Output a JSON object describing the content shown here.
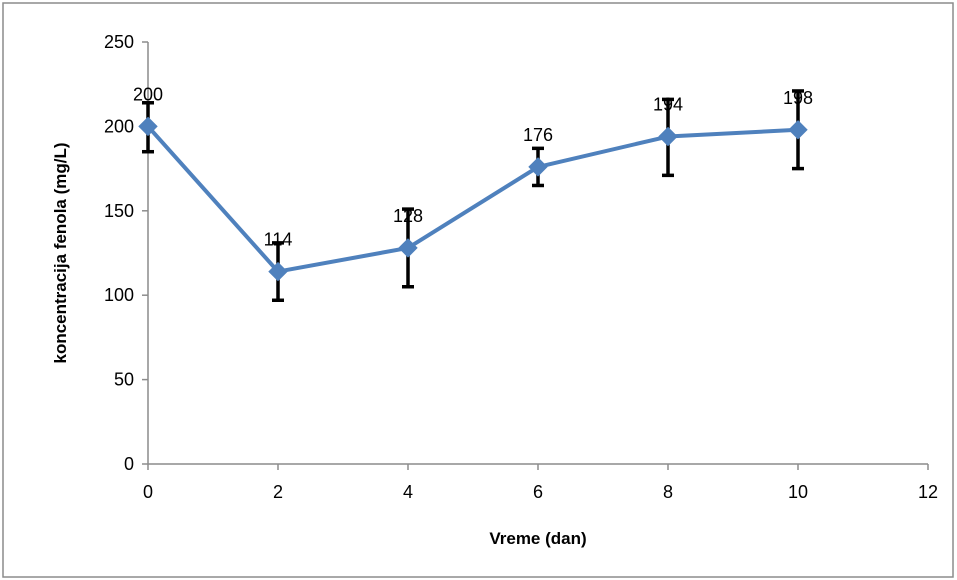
{
  "chart_data": {
    "type": "line",
    "xlabel": "Vreme (dan)",
    "ylabel": "koncentracija fenola (mg/L)",
    "xlim": [
      0,
      12
    ],
    "ylim": [
      0,
      250
    ],
    "x_ticks": [
      0,
      2,
      4,
      6,
      8,
      10,
      12
    ],
    "y_ticks": [
      0,
      50,
      100,
      150,
      200,
      250
    ],
    "grid": false,
    "legend": "none",
    "series": [
      {
        "color": "#4F81BD",
        "marker": "diamond",
        "x": [
          0,
          2,
          4,
          6,
          8,
          10
        ],
        "y": [
          200,
          114,
          128,
          176,
          194,
          198
        ],
        "data_labels": [
          "200",
          "114",
          "128",
          "176",
          "194",
          "198"
        ],
        "error_low": [
          185,
          97,
          105,
          165,
          171,
          175
        ],
        "error_high": [
          214,
          131,
          151,
          187,
          216,
          221
        ]
      }
    ]
  }
}
